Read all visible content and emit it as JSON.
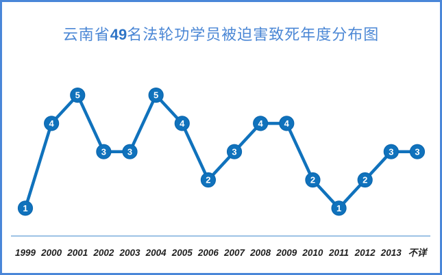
{
  "title": {
    "prefix": "云南省",
    "number": "49",
    "suffix": "名法轮功学员被迫害致死年度分布图"
  },
  "chart_data": {
    "type": "line",
    "title": "云南省49名法轮功学员被迫害致死年度分布图",
    "categories": [
      "1999",
      "2000",
      "2001",
      "2002",
      "2003",
      "2004",
      "2005",
      "2006",
      "2007",
      "2008",
      "2009",
      "2010",
      "2011",
      "2012",
      "2013",
      "不详"
    ],
    "values": [
      1,
      4,
      5,
      3,
      3,
      5,
      4,
      2,
      3,
      4,
      4,
      2,
      1,
      2,
      3,
      3
    ],
    "xlabel": "",
    "ylabel": "",
    "ylim": [
      0,
      5
    ],
    "grid": false,
    "legend_position": "none",
    "data_labels": "inside-marker"
  },
  "colors": {
    "frame": "#4a86d8",
    "title_text": "#4b87d5",
    "title_number": "#2e74c6",
    "line": "#1072bc",
    "marker_fill": "#1072bc",
    "marker_stroke": "#0b67af",
    "marker_text": "#ffffff",
    "axis_line": "#9cc2e5",
    "axis_label_text": "#1f1f1f",
    "background": "#ffffff"
  }
}
